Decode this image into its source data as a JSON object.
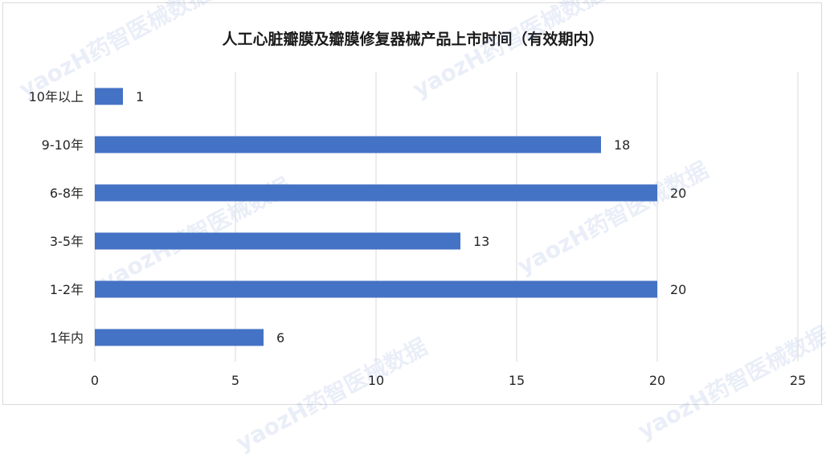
{
  "chart_data": {
    "type": "bar",
    "orientation": "horizontal",
    "title": "人工心脏瓣膜及瓣膜修复器械产品上市时间（有效期内）",
    "categories": [
      "10年以上",
      "9-10年",
      "6-8年",
      "3-5年",
      "1-2年",
      "1年内"
    ],
    "values": [
      1,
      18,
      20,
      13,
      20,
      6
    ],
    "xlim": [
      0,
      25
    ],
    "xticks": [
      0,
      5,
      10,
      15,
      20,
      25
    ],
    "xlabel": "",
    "ylabel": "",
    "grid": true,
    "legend": false,
    "bar_color": "#4472c4"
  },
  "watermark": {
    "text": "yaozH药智医械数据"
  }
}
